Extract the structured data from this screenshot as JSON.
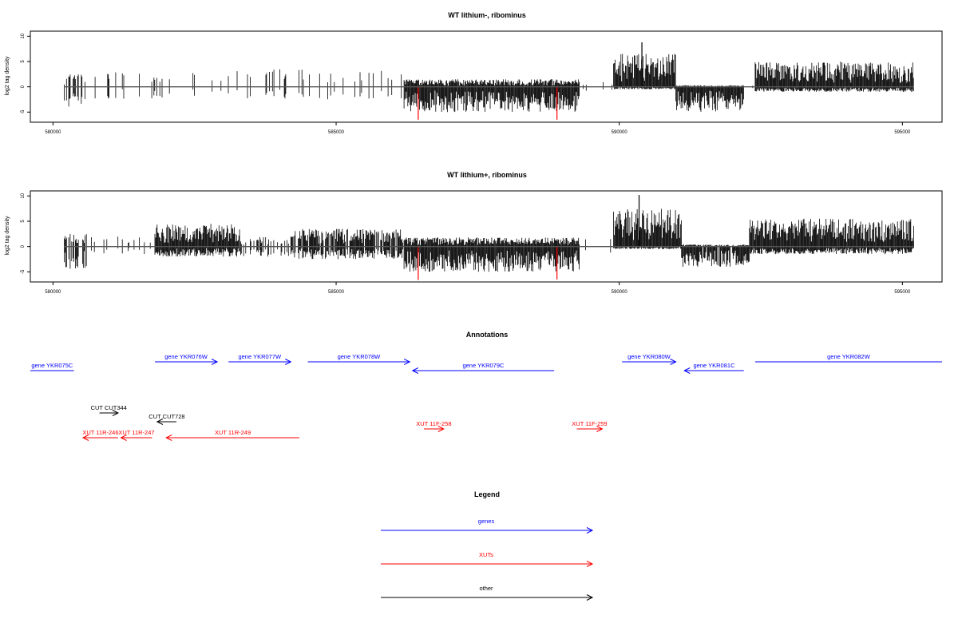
{
  "panels": [
    {
      "title": "WT lithium-, ribominus",
      "ylabel": "log2 tag density",
      "ylim": [
        -7,
        11
      ],
      "yticks": [
        -5,
        0,
        5,
        10
      ],
      "xlim": [
        579600,
        595700
      ],
      "xticks": [
        580000,
        585000,
        590000,
        595000
      ],
      "data_start": 580200,
      "data_end": 595200,
      "signal_regions": [
        {
          "start": 580200,
          "end": 580600,
          "density": 0.5,
          "pos": 2.5,
          "neg": -4.0
        },
        {
          "start": 580600,
          "end": 586200,
          "density": 0.12,
          "pos": 3.5,
          "neg": -2.5
        },
        {
          "start": 586200,
          "end": 589300,
          "density": 1.0,
          "pos": 1.5,
          "neg": -5.0
        },
        {
          "start": 589300,
          "end": 589900,
          "density": 0.1,
          "pos": 1.0,
          "neg": -1.0
        },
        {
          "start": 589900,
          "end": 591000,
          "density": 1.0,
          "pos": 6.5,
          "neg": -0.5
        },
        {
          "start": 591000,
          "end": 592200,
          "density": 1.0,
          "pos": 0.3,
          "neg": -5.0
        },
        {
          "start": 592200,
          "end": 592400,
          "density": 0.1,
          "pos": 0.5,
          "neg": -0.5
        },
        {
          "start": 592400,
          "end": 595200,
          "density": 1.0,
          "pos": 5.0,
          "neg": -1.0
        }
      ],
      "peaks": [
        {
          "x": 590400,
          "y": 8.8,
          "color": "#000000"
        },
        {
          "x": 586450,
          "y": -6.5,
          "color": "#ff0000"
        },
        {
          "x": 588900,
          "y": -6.5,
          "color": "#ff0000"
        }
      ]
    },
    {
      "title": "WT lithium+, ribominus",
      "ylabel": "log2 tag density",
      "ylim": [
        -7,
        11
      ],
      "yticks": [
        -5,
        0,
        5,
        10
      ],
      "xlim": [
        579600,
        595700
      ],
      "xticks": [
        580000,
        585000,
        590000,
        595000
      ],
      "data_start": 580200,
      "data_end": 595200,
      "signal_regions": [
        {
          "start": 580200,
          "end": 580600,
          "density": 0.6,
          "pos": 2.5,
          "neg": -4.5
        },
        {
          "start": 580600,
          "end": 581800,
          "density": 0.15,
          "pos": 2.0,
          "neg": -1.5
        },
        {
          "start": 581800,
          "end": 583300,
          "density": 1.0,
          "pos": 4.5,
          "neg": -2.0
        },
        {
          "start": 583300,
          "end": 584200,
          "density": 0.25,
          "pos": 2.0,
          "neg": -2.0
        },
        {
          "start": 584200,
          "end": 586200,
          "density": 0.85,
          "pos": 3.5,
          "neg": -2.5
        },
        {
          "start": 586200,
          "end": 589300,
          "density": 1.0,
          "pos": 1.8,
          "neg": -5.0
        },
        {
          "start": 589300,
          "end": 589900,
          "density": 0.12,
          "pos": 1.5,
          "neg": -1.5
        },
        {
          "start": 589900,
          "end": 591100,
          "density": 1.0,
          "pos": 7.5,
          "neg": -0.5
        },
        {
          "start": 591100,
          "end": 592300,
          "density": 0.9,
          "pos": 0.4,
          "neg": -4.0
        },
        {
          "start": 592300,
          "end": 595200,
          "density": 1.0,
          "pos": 5.5,
          "neg": -1.5
        }
      ],
      "peaks": [
        {
          "x": 590350,
          "y": 10.2,
          "color": "#000000"
        },
        {
          "x": 586450,
          "y": -6.6,
          "color": "#ff0000"
        },
        {
          "x": 588900,
          "y": -6.5,
          "color": "#ff0000"
        }
      ]
    }
  ],
  "annotations": {
    "title": "Annotations",
    "xlim": [
      579600,
      595700
    ],
    "features": [
      {
        "label": "gene YKR075C",
        "start": 579600,
        "end": 580370,
        "dir": "none",
        "row": 1,
        "color": "#0000ff"
      },
      {
        "label": "gene YKR076W",
        "start": 581800,
        "end": 582900,
        "dir": "right",
        "row": 0,
        "color": "#0000ff"
      },
      {
        "label": "gene YKR077W",
        "start": 583100,
        "end": 584200,
        "dir": "right",
        "row": 0,
        "color": "#0000ff"
      },
      {
        "label": "gene YKR078W",
        "start": 584500,
        "end": 586300,
        "dir": "right",
        "row": 0,
        "color": "#0000ff"
      },
      {
        "label": "gene YKR079C",
        "start": 586350,
        "end": 588850,
        "dir": "left",
        "row": 1,
        "color": "#0000ff"
      },
      {
        "label": "gene YKR080W",
        "start": 590050,
        "end": 591000,
        "dir": "right",
        "row": 0,
        "color": "#0000ff"
      },
      {
        "label": "gene YKR081C",
        "start": 591150,
        "end": 592200,
        "dir": "left",
        "row": 1,
        "color": "#0000ff"
      },
      {
        "label": "gene YKR082W",
        "start": 592400,
        "end": 595700,
        "dir": "none",
        "row": 0,
        "color": "#0000ff"
      },
      {
        "label": "CUT CUT344",
        "start": 580820,
        "end": 581150,
        "dir": "right",
        "row": 2,
        "color": "#000000"
      },
      {
        "label": "CUT CUT728",
        "start": 581840,
        "end": 582180,
        "dir": "left",
        "row": 3,
        "color": "#000000"
      },
      {
        "label": "XUT 11R-246",
        "start": 580530,
        "end": 581150,
        "dir": "left",
        "row": 4,
        "color": "#ff0000"
      },
      {
        "label": "XUT 11R-247",
        "start": 581200,
        "end": 581750,
        "dir": "left",
        "row": 4,
        "color": "#ff0000"
      },
      {
        "label": "XUT 11R-249",
        "start": 582000,
        "end": 584350,
        "dir": "left",
        "row": 4,
        "color": "#ff0000"
      },
      {
        "label": "XUT 11F-258",
        "start": 586550,
        "end": 586900,
        "dir": "right",
        "row": 5,
        "color": "#ff0000"
      },
      {
        "label": "XUT 11F-259",
        "start": 589250,
        "end": 589700,
        "dir": "right",
        "row": 5,
        "color": "#ff0000"
      }
    ]
  },
  "legend": {
    "title": "Legend",
    "items": [
      {
        "label": "genes",
        "color": "#0000ff"
      },
      {
        "label": "XUTs",
        "color": "#ff0000"
      },
      {
        "label": "other",
        "color": "#000000"
      }
    ]
  }
}
